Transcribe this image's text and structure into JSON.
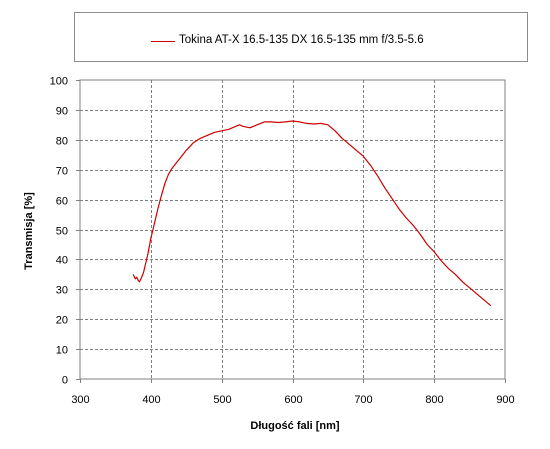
{
  "legend": {
    "label": "Tokina AT-X 16.5-135 DX 16.5-135 mm  f/3.5-5.6"
  },
  "colors": {
    "series": "#cc0000",
    "grid": "#808080",
    "axis": "#808080"
  },
  "chart_data": {
    "type": "line",
    "title": "",
    "xlabel": "Długość fali [nm]",
    "ylabel": "Transmisja [%]",
    "xlim": [
      300,
      900
    ],
    "ylim": [
      0,
      100
    ],
    "xticks": [
      300,
      400,
      500,
      600,
      700,
      800,
      900
    ],
    "yticks": [
      0,
      10,
      20,
      30,
      40,
      50,
      60,
      70,
      80,
      90,
      100
    ],
    "grid": true,
    "legend_position": "top",
    "series": [
      {
        "name": "Tokina AT-X 16.5-135 DX 16.5-135 mm  f/3.5-5.6",
        "x": [
          375,
          378,
          380,
          382,
          384,
          386,
          388,
          390,
          393,
          396,
          400,
          405,
          410,
          415,
          420,
          425,
          430,
          435,
          440,
          450,
          460,
          470,
          480,
          490,
          500,
          510,
          520,
          525,
          530,
          540,
          550,
          560,
          570,
          580,
          590,
          600,
          610,
          620,
          630,
          640,
          650,
          660,
          670,
          680,
          690,
          700,
          710,
          720,
          730,
          740,
          750,
          760,
          770,
          780,
          790,
          800,
          810,
          820,
          830,
          840,
          850,
          860,
          870,
          880
        ],
        "y": [
          35,
          33.5,
          34,
          33,
          32.5,
          33.5,
          34.5,
          36,
          39,
          42,
          47,
          52,
          57,
          61.5,
          65.5,
          68.5,
          70.5,
          72,
          73.5,
          76.5,
          79,
          80.5,
          81.5,
          82.5,
          83,
          83.5,
          84.5,
          85,
          84.5,
          84,
          85,
          86,
          86,
          85.8,
          86,
          86.3,
          86,
          85.5,
          85.3,
          85.5,
          85,
          83,
          80.5,
          78.5,
          76.5,
          74.5,
          71.5,
          68,
          64,
          60.5,
          57,
          54,
          51.5,
          48.5,
          45,
          42.5,
          39.5,
          37,
          35,
          32.5,
          30.5,
          28.5,
          26.5,
          24.5
        ]
      }
    ]
  }
}
